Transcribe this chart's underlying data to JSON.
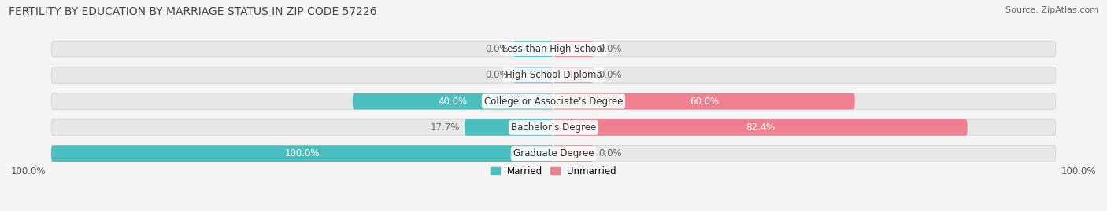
{
  "title": "FERTILITY BY EDUCATION BY MARRIAGE STATUS IN ZIP CODE 57226",
  "source": "Source: ZipAtlas.com",
  "categories": [
    "Less than High School",
    "High School Diploma",
    "College or Associate's Degree",
    "Bachelor's Degree",
    "Graduate Degree"
  ],
  "married": [
    0.0,
    0.0,
    40.0,
    17.7,
    100.0
  ],
  "unmarried": [
    0.0,
    0.0,
    60.0,
    82.4,
    0.0
  ],
  "married_color": "#4bbfbf",
  "unmarried_color": "#f08090",
  "bar_bg_color": "#e8e8e8",
  "bar_bg_edge_color": "#d0d0d0",
  "married_label": "Married",
  "unmarried_label": "Unmarried",
  "title_fontsize": 10,
  "source_fontsize": 8,
  "label_fontsize": 8.5,
  "cat_fontsize": 8.5,
  "bar_height": 0.62,
  "background_color": "#f5f5f5",
  "axis_label_left": "100.0%",
  "axis_label_right": "100.0%",
  "min_bar_size": 8.0,
  "value_label_color_inside": "#ffffff",
  "value_label_color_outside": "#666666"
}
